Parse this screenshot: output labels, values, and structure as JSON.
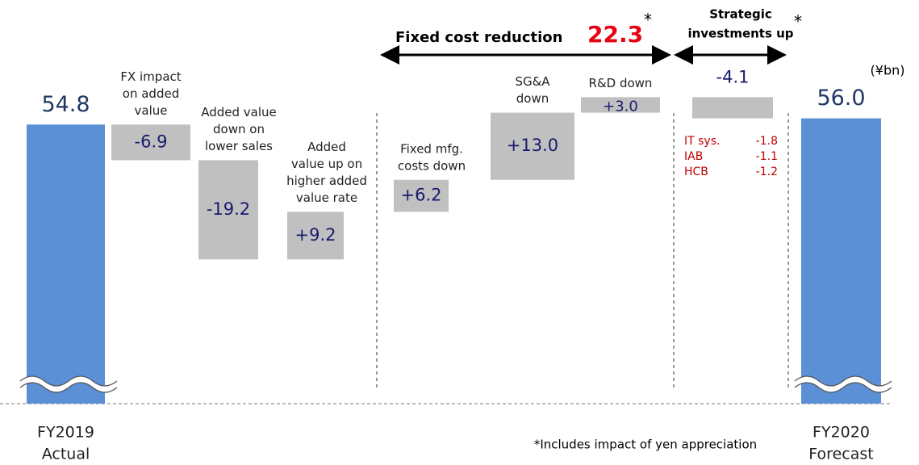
{
  "chart_data": {
    "type": "waterfall",
    "categories": [
      [
        "FY2019",
        "Actual"
      ],
      [
        "FX impact",
        "on added",
        "value"
      ],
      [
        "Added value",
        "down on",
        "lower sales"
      ],
      [
        "Added",
        "value up on",
        "higher added",
        "value rate"
      ],
      [
        "Fixed mfg.",
        "costs down"
      ],
      [
        "SG&A",
        "down"
      ],
      [
        "R&D down"
      ],
      null,
      [
        "FY2020",
        "Forecast"
      ]
    ],
    "values": [
      54.8,
      -6.9,
      -19.2,
      9.2,
      6.2,
      13.0,
      3.0,
      -4.1,
      56.0
    ],
    "value_labels": [
      "54.8",
      "-6.9",
      "-19.2",
      "+9.2",
      "+6.2",
      "+13.0",
      "+3.0",
      "-4.1",
      "56.0"
    ],
    "total_color": "#5b8fd6",
    "delta_color": "#c0c0c0",
    "ylim": [
      0,
      70
    ],
    "unit": "(¥bn)",
    "fixed_cost_label": "Fixed cost reduction",
    "fixed_cost_total": 22.3,
    "strategic_label": [
      "Strategic",
      "investments up"
    ],
    "asterisk": "*",
    "breakdown": [
      {
        "name": "IT sys.",
        "value": -1.8
      },
      {
        "name": "IAB",
        "value": -1.1
      },
      {
        "name": "HCB",
        "value": -1.2
      }
    ],
    "footnote": "*Includes impact of yen appreciation"
  }
}
